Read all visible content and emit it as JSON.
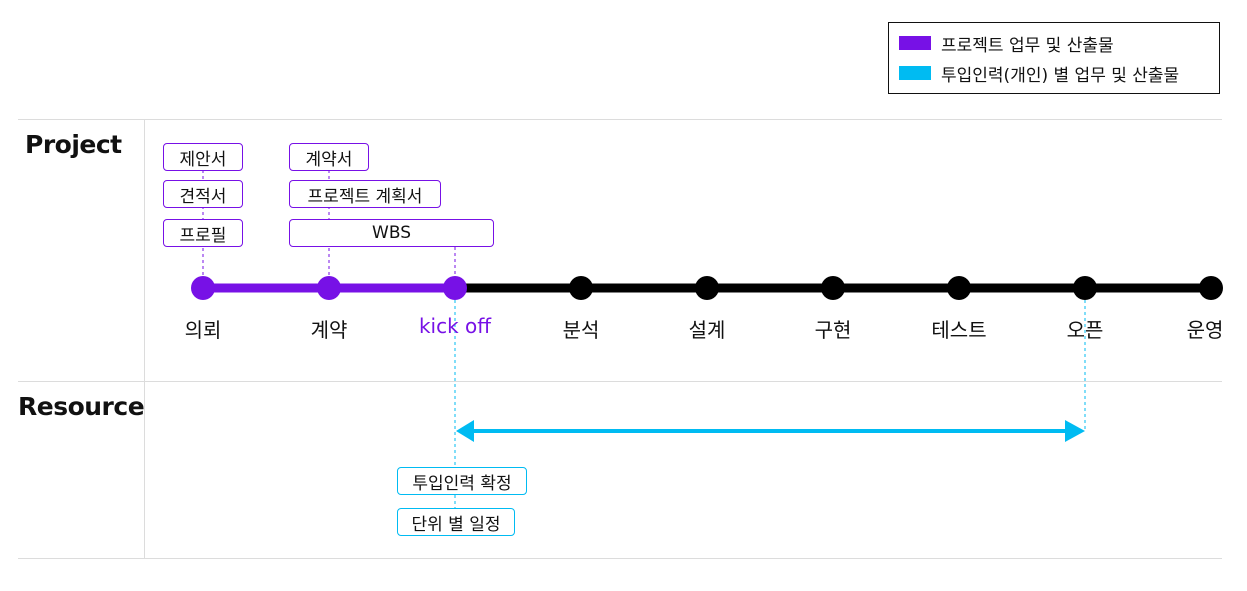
{
  "legend": {
    "items": [
      {
        "label": "프로젝트 업무 및 산출물",
        "color": "#7711e6"
      },
      {
        "label": "투입인력(개인) 별 업무 및 산출물",
        "color": "#00bbf2"
      }
    ]
  },
  "sections": {
    "project": "Project",
    "resource": "Resource"
  },
  "phases": [
    {
      "label": "의뢰",
      "highlight": false
    },
    {
      "label": "계약",
      "highlight": false
    },
    {
      "label": "kick off",
      "highlight": true
    },
    {
      "label": "분석",
      "highlight": false
    },
    {
      "label": "설계",
      "highlight": false
    },
    {
      "label": "구현",
      "highlight": false
    },
    {
      "label": "테스트",
      "highlight": false
    },
    {
      "label": "오픈",
      "highlight": false
    },
    {
      "label": "운영",
      "highlight": false
    }
  ],
  "project_docs": {
    "request": [
      "제안서",
      "견적서",
      "프로필"
    ],
    "contract": [
      "계약서",
      "프로젝트 계획서"
    ],
    "span": "WBS"
  },
  "resource_docs": [
    "투입인력 확정",
    "단위 별 일정"
  ],
  "colors": {
    "project": "#7711e6",
    "resource": "#00bbf2",
    "timeline": "#000000"
  }
}
